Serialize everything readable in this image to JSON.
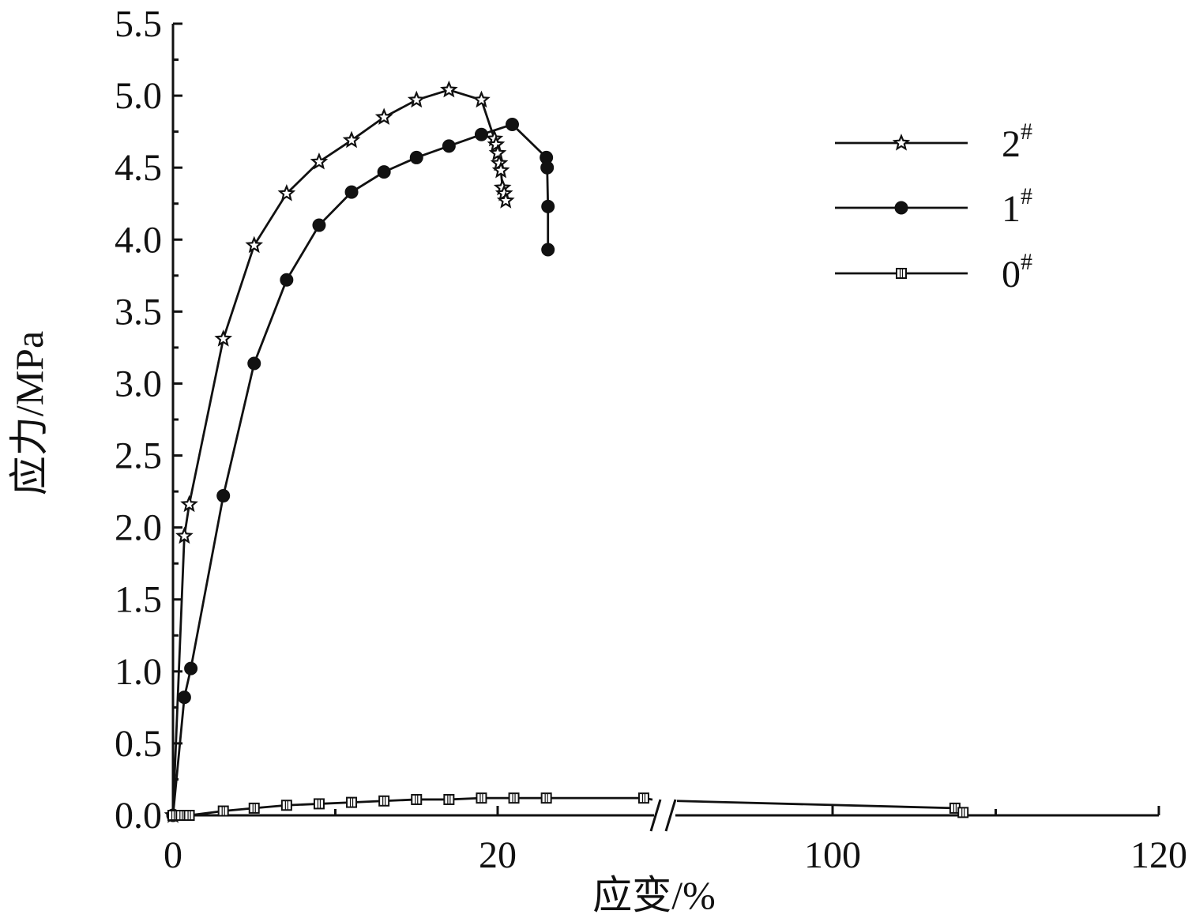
{
  "chart_data": {
    "type": "line",
    "xlabel": "应变/%",
    "ylabel": "应力/MPa",
    "x_ticks": [
      "0",
      "20",
      "100",
      "120"
    ],
    "y_ticks": [
      "0.0",
      "0.5",
      "1.0",
      "1.5",
      "2.0",
      "2.5",
      "3.0",
      "3.5",
      "4.0",
      "4.5",
      "5.0",
      "5.5"
    ],
    "ylim": [
      0,
      5.5
    ],
    "x_axis_broken": true,
    "x_break": {
      "lower_segment": [
        0,
        30
      ],
      "upper_segment": [
        90,
        120
      ]
    },
    "grid": false,
    "legend": "right",
    "series": [
      {
        "name": "2#",
        "base": "2",
        "sup": "#",
        "marker": "star",
        "points": [
          [
            0,
            0
          ],
          [
            0.7,
            1.94
          ],
          [
            1.0,
            2.16
          ],
          [
            3.1,
            3.31
          ],
          [
            5.0,
            3.96
          ],
          [
            7.0,
            4.32
          ],
          [
            9.0,
            4.54
          ],
          [
            11.0,
            4.69
          ],
          [
            13.0,
            4.85
          ],
          [
            15.0,
            4.97
          ],
          [
            17.0,
            5.04
          ],
          [
            19.0,
            4.97
          ],
          [
            19.8,
            4.7
          ],
          [
            19.9,
            4.66
          ],
          [
            20.0,
            4.6
          ],
          [
            20.1,
            4.53
          ],
          [
            20.2,
            4.48
          ],
          [
            20.3,
            4.36
          ],
          [
            20.4,
            4.32
          ],
          [
            20.5,
            4.27
          ]
        ]
      },
      {
        "name": "1#",
        "base": "1",
        "sup": "#",
        "marker": "circle",
        "points": [
          [
            0,
            0
          ],
          [
            0.7,
            0.82
          ],
          [
            1.1,
            1.02
          ],
          [
            3.1,
            2.22
          ],
          [
            5.0,
            3.14
          ],
          [
            7.0,
            3.72
          ],
          [
            9.0,
            4.1
          ],
          [
            11.0,
            4.33
          ],
          [
            13.0,
            4.47
          ],
          [
            15.0,
            4.57
          ],
          [
            17.0,
            4.65
          ],
          [
            19.0,
            4.73
          ],
          [
            20.9,
            4.8
          ],
          [
            23.0,
            4.57
          ],
          [
            23.05,
            4.5
          ],
          [
            23.1,
            4.23
          ],
          [
            23.1,
            3.93
          ]
        ]
      },
      {
        "name": "0#",
        "base": "0",
        "sup": "#",
        "marker": "square",
        "points": [
          [
            0,
            0
          ],
          [
            0.5,
            0.0
          ],
          [
            1.0,
            0.0
          ],
          [
            3.1,
            0.03
          ],
          [
            5.0,
            0.05
          ],
          [
            7.0,
            0.07
          ],
          [
            9.0,
            0.08
          ],
          [
            11.0,
            0.09
          ],
          [
            13.0,
            0.1
          ],
          [
            15.0,
            0.11
          ],
          [
            17.0,
            0.11
          ],
          [
            19.0,
            0.12
          ],
          [
            21.0,
            0.12
          ],
          [
            23.0,
            0.12
          ],
          [
            29.0,
            0.12
          ],
          [
            107.5,
            0.05
          ],
          [
            108.0,
            0.02
          ]
        ]
      }
    ]
  }
}
